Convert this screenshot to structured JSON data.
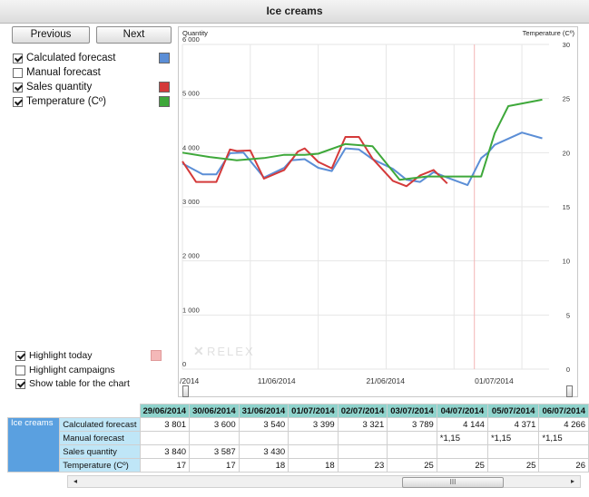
{
  "window": {
    "title": "Ice creams"
  },
  "nav": {
    "previous": "Previous",
    "next": "Next"
  },
  "series": [
    {
      "label": "Calculated forecast",
      "checked": true,
      "color": "#5b8ed6"
    },
    {
      "label": "Manual forecast",
      "checked": false,
      "color": null
    },
    {
      "label": "Sales quantity",
      "checked": true,
      "color": "#d43a3a"
    },
    {
      "label": "Temperature (Cº)",
      "checked": true,
      "color": "#3ea83a"
    }
  ],
  "options": {
    "highlight_today": {
      "label": "Highlight today",
      "checked": true,
      "color": "#f4b8b8"
    },
    "highlight_campaigns": {
      "label": "Highlight campaigns",
      "checked": false
    },
    "show_table": {
      "label": "Show table for the chart",
      "checked": true
    }
  },
  "watermark": "RELEX",
  "chart_data": {
    "type": "line",
    "left_axis_label": "Quantity",
    "right_axis_label": "Temperature (Cº)",
    "left_ylim": [
      0,
      6000
    ],
    "right_ylim": [
      0,
      30
    ],
    "left_ticks": [
      "6 000",
      "5 000",
      "4 000",
      "3 000",
      "2 000",
      "1 000",
      "0"
    ],
    "right_ticks": [
      "30",
      "25",
      "20",
      "15",
      "10",
      "5",
      "0"
    ],
    "x_tick_labels": [
      "/2014",
      "11/06/2014",
      "21/06/2014",
      "01/07/2014"
    ],
    "grid": true,
    "series": [
      {
        "name": "Calculated forecast",
        "axis": "left",
        "color": "#5b8ed6",
        "points": [
          [
            0,
            3801
          ],
          [
            3,
            3600
          ],
          [
            5,
            3600
          ],
          [
            7,
            3990
          ],
          [
            9,
            4000
          ],
          [
            12,
            3540
          ],
          [
            15,
            3720
          ],
          [
            16,
            3860
          ],
          [
            18,
            3880
          ],
          [
            20,
            3720
          ],
          [
            22,
            3660
          ],
          [
            24,
            4080
          ],
          [
            26,
            4060
          ],
          [
            28,
            3880
          ],
          [
            31,
            3700
          ],
          [
            33,
            3500
          ],
          [
            35,
            3460
          ],
          [
            37,
            3640
          ],
          [
            39,
            3540
          ],
          [
            42,
            3400
          ],
          [
            44,
            3900
          ],
          [
            45,
            4000
          ],
          [
            46,
            4144
          ],
          [
            50,
            4371
          ],
          [
            53,
            4266
          ]
        ]
      },
      {
        "name": "Sales quantity",
        "axis": "left",
        "color": "#d43a3a",
        "points": [
          [
            0,
            3840
          ],
          [
            2,
            3460
          ],
          [
            4,
            3460
          ],
          [
            5,
            3460
          ],
          [
            7,
            4060
          ],
          [
            8,
            4030
          ],
          [
            10,
            4040
          ],
          [
            12,
            3520
          ],
          [
            15,
            3680
          ],
          [
            17,
            4020
          ],
          [
            18,
            4080
          ],
          [
            20,
            3830
          ],
          [
            22,
            3710
          ],
          [
            24,
            4290
          ],
          [
            26,
            4290
          ],
          [
            28,
            3890
          ],
          [
            31,
            3480
          ],
          [
            33,
            3380
          ],
          [
            35,
            3580
          ],
          [
            37,
            3680
          ],
          [
            39,
            3430
          ]
        ]
      },
      {
        "name": "Temperature (Cº)",
        "axis": "right",
        "color": "#3ea83a",
        "points": [
          [
            0,
            20
          ],
          [
            4,
            19.6
          ],
          [
            8,
            19.3
          ],
          [
            12,
            19.5
          ],
          [
            15,
            19.8
          ],
          [
            18,
            19.8
          ],
          [
            20,
            19.9
          ],
          [
            24,
            20.8
          ],
          [
            28,
            20.6
          ],
          [
            32,
            17.5
          ],
          [
            36,
            17.8
          ],
          [
            40,
            17.8
          ],
          [
            44,
            17.8
          ],
          [
            46,
            21.8
          ],
          [
            48,
            24.3
          ],
          [
            53,
            24.9
          ]
        ]
      }
    ]
  },
  "table": {
    "group_label": "Ice creams",
    "dates": [
      "29/06/2014",
      "30/06/2014",
      "31/06/2014",
      "01/07/2014",
      "02/07/2014",
      "03/07/2014",
      "04/07/2014",
      "05/07/2014",
      "06/07/2014"
    ],
    "rows": [
      {
        "label": "Calculated forecast",
        "values": [
          "3 801",
          "3 600",
          "3 540",
          "3 399",
          "3 321",
          "3 789",
          "4 144",
          "4 371",
          "4 266"
        ]
      },
      {
        "label": "Manual forecast",
        "values": [
          "",
          "",
          "",
          "",
          "",
          "",
          "*1,15",
          "*1,15",
          "*1,15"
        ]
      },
      {
        "label": "Sales quantity",
        "values": [
          "3 840",
          "3 587",
          "3 430",
          "",
          "",
          "",
          "",
          "",
          ""
        ]
      },
      {
        "label": "Temperature (Cº)",
        "values": [
          "17",
          "17",
          "18",
          "18",
          "23",
          "25",
          "25",
          "25",
          "26"
        ]
      }
    ]
  },
  "scrollbar": {
    "thumb_glyph": "III"
  }
}
